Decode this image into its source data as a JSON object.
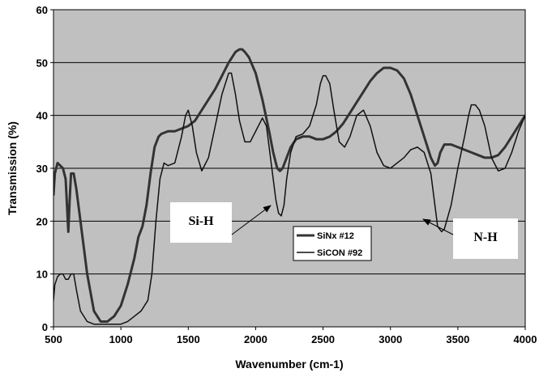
{
  "chart_data": {
    "type": "line",
    "title": "",
    "xlabel": "Wavenumber (cm-1)",
    "ylabel": "Transmission (%)",
    "xlim": [
      500,
      4000
    ],
    "ylim": [
      0,
      60
    ],
    "xticks": [
      500,
      1000,
      1500,
      2000,
      2500,
      3000,
      3500,
      4000
    ],
    "yticks": [
      0,
      10,
      20,
      30,
      40,
      50,
      60
    ],
    "grid": "horizontal",
    "legend_position": "bottom-center",
    "plot_background": "#c0c0c0",
    "series": [
      {
        "name": "SiNx #12",
        "color": "#333333",
        "width": 3,
        "x": [
          500,
          510,
          530,
          550,
          570,
          590,
          600,
          610,
          620,
          630,
          650,
          670,
          700,
          750,
          800,
          850,
          900,
          950,
          1000,
          1050,
          1100,
          1130,
          1160,
          1190,
          1220,
          1250,
          1280,
          1300,
          1350,
          1400,
          1450,
          1500,
          1550,
          1600,
          1650,
          1700,
          1750,
          1800,
          1850,
          1880,
          1900,
          1920,
          1950,
          2000,
          2050,
          2100,
          2130,
          2160,
          2180,
          2200,
          2230,
          2260,
          2300,
          2350,
          2400,
          2450,
          2500,
          2550,
          2600,
          2650,
          2700,
          2750,
          2800,
          2850,
          2900,
          2950,
          3000,
          3050,
          3100,
          3150,
          3200,
          3250,
          3300,
          3330,
          3350,
          3370,
          3400,
          3450,
          3500,
          3550,
          3600,
          3650,
          3700,
          3750,
          3800,
          3850,
          3900,
          3950,
          4000
        ],
        "y": [
          25,
          29,
          31,
          30.5,
          30,
          28,
          23,
          18,
          24,
          29,
          29,
          26,
          20,
          10,
          3,
          1,
          1,
          2,
          4,
          8,
          13,
          17,
          19,
          23,
          29,
          34,
          36,
          36.5,
          37,
          37,
          37.5,
          38,
          39,
          41,
          43,
          45,
          47.5,
          50,
          52,
          52.5,
          52.5,
          52,
          51,
          48,
          43,
          37,
          33,
          30,
          29.5,
          30,
          32,
          34,
          35.5,
          36,
          36,
          35.5,
          35.5,
          36,
          37,
          38.5,
          40.5,
          42.5,
          44.5,
          46.5,
          48,
          49,
          49,
          48.5,
          47,
          44,
          40,
          36,
          32,
          30.5,
          31,
          33,
          34.5,
          34.5,
          34,
          33.5,
          33,
          32.5,
          32,
          32,
          32.5,
          34,
          36,
          38,
          40
        ]
      },
      {
        "name": "SiCON #92",
        "color": "#111111",
        "width": 1.5,
        "x": [
          500,
          510,
          530,
          550,
          570,
          590,
          610,
          630,
          650,
          670,
          700,
          750,
          800,
          850,
          900,
          950,
          1000,
          1050,
          1100,
          1150,
          1200,
          1230,
          1260,
          1290,
          1320,
          1350,
          1400,
          1450,
          1480,
          1500,
          1530,
          1560,
          1600,
          1650,
          1700,
          1750,
          1800,
          1820,
          1850,
          1880,
          1920,
          1960,
          2000,
          2050,
          2080,
          2100,
          2130,
          2150,
          2170,
          2190,
          2210,
          2230,
          2260,
          2300,
          2350,
          2400,
          2450,
          2480,
          2500,
          2520,
          2550,
          2580,
          2620,
          2660,
          2700,
          2750,
          2800,
          2850,
          2880,
          2900,
          2950,
          3000,
          3050,
          3100,
          3150,
          3200,
          3250,
          3300,
          3330,
          3350,
          3380,
          3400,
          3450,
          3500,
          3550,
          3580,
          3600,
          3630,
          3660,
          3700,
          3750,
          3800,
          3850,
          3900,
          3950,
          4000
        ],
        "y": [
          5,
          8,
          9.5,
          10,
          10,
          9,
          9,
          10,
          10,
          7,
          3,
          1,
          0.5,
          0.5,
          0.5,
          0.5,
          0.5,
          1,
          2,
          3,
          5,
          10,
          20,
          28,
          31,
          30.5,
          31,
          36,
          40,
          41,
          38,
          33,
          29.5,
          32,
          38,
          44,
          48,
          48,
          44,
          39,
          35,
          35,
          37,
          39.5,
          38,
          34,
          28,
          24,
          21.5,
          21,
          23,
          28,
          33,
          36,
          36.5,
          38,
          42,
          46,
          47.5,
          47.5,
          46,
          41,
          35,
          34,
          36,
          40,
          41,
          38,
          35,
          33,
          30.5,
          30,
          31,
          32,
          33.5,
          34,
          33,
          29,
          23,
          19,
          18,
          18.5,
          23,
          30,
          36,
          40,
          42,
          42,
          41,
          38,
          32,
          29.5,
          30,
          33,
          37,
          40
        ]
      }
    ],
    "annotations": [
      {
        "text": "Si-H",
        "target": [
          2150,
          23
        ]
      },
      {
        "text": "N-H",
        "target": [
          3230,
          20
        ]
      }
    ]
  }
}
